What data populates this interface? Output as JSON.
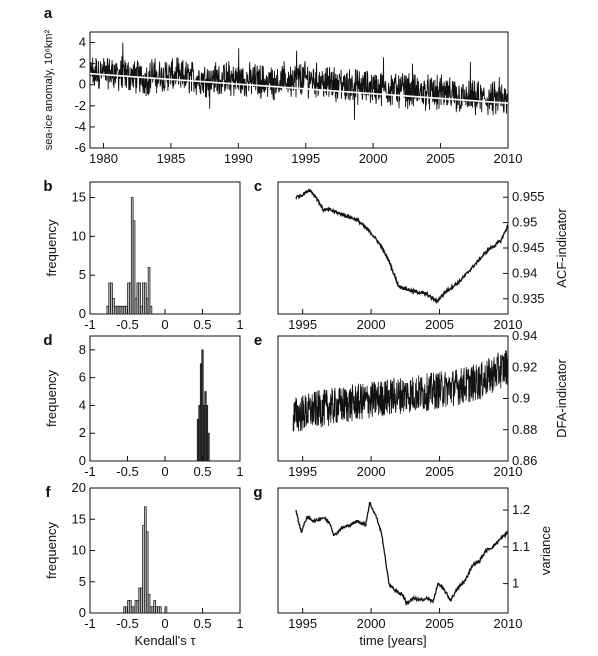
{
  "chart_data": [
    {
      "panel": "a",
      "type": "line",
      "title": "",
      "xlabel": "",
      "ylabel": "sea-ice anomaly, 10⁶km²",
      "xlim": [
        1979,
        2010
      ],
      "ylim": [
        -6,
        5
      ],
      "x_ticks": [
        "1980",
        "1985",
        "1990",
        "1995",
        "2000",
        "2005",
        "2010"
      ],
      "y_ticks": [
        "-6",
        "-4",
        "-2",
        "0",
        "2",
        "4"
      ],
      "series": [
        {
          "kind": "daily anomaly (noisy)",
          "x": [
            1979.0,
            1981.0,
            1983.0,
            1985.0,
            1987.0,
            1989.0,
            1991.0,
            1993.0,
            1995.0,
            1997.0,
            1999.0,
            2001.0,
            2003.0,
            2005.0,
            2007.0,
            2009.0,
            2010.0
          ],
          "y": [
            1.2,
            1.1,
            0.6,
            0.9,
            0.6,
            0.5,
            0.4,
            0.3,
            0.6,
            0.1,
            -0.2,
            -0.3,
            -0.6,
            -0.9,
            -1.3,
            -1.4,
            -1.7
          ]
        },
        {
          "kind": "linear trend",
          "x": [
            1979,
            2010
          ],
          "y": [
            1.05,
            -1.75
          ]
        }
      ]
    },
    {
      "panel": "b",
      "type": "bar",
      "xlabel": "",
      "ylabel": "frequency",
      "xlim": [
        -1,
        1
      ],
      "ylim": [
        0,
        17
      ],
      "x_ticks": [
        "-1",
        "-0.5",
        "0",
        "0.5",
        "1"
      ],
      "y_ticks": [
        "0",
        "5",
        "10",
        "15"
      ],
      "bin_width": 0.025,
      "bins": [
        -0.775,
        -0.75,
        -0.725,
        -0.7,
        -0.675,
        -0.65,
        -0.625,
        -0.6,
        -0.575,
        -0.55,
        -0.525,
        -0.5,
        -0.475,
        -0.45,
        -0.425,
        -0.4,
        -0.375,
        -0.35,
        -0.325,
        -0.3,
        -0.275,
        -0.25,
        -0.225,
        -0.2
      ],
      "values": [
        1,
        4,
        4,
        2,
        1,
        1,
        1,
        1,
        1,
        1,
        1,
        4,
        4,
        15,
        12,
        2,
        4,
        4,
        1,
        4,
        4,
        2,
        6,
        1
      ]
    },
    {
      "panel": "c",
      "type": "line",
      "xlabel": "",
      "ylabel": "ACF-indicator",
      "xlim": [
        1993.2,
        2010
      ],
      "ylim": [
        0.932,
        0.958
      ],
      "x_ticks": [
        "1995",
        "2000",
        "2005",
        "2010"
      ],
      "y_ticks": [
        "0.935",
        "0.94",
        "0.945",
        "0.95",
        "0.955"
      ],
      "x": [
        1994.5,
        1995.0,
        1995.5,
        1996.0,
        1996.5,
        1997.0,
        1998.0,
        1999.0,
        2000.0,
        2000.7,
        2001.3,
        2002.0,
        2003.0,
        2004.0,
        2004.8,
        2005.5,
        2006.5,
        2007.5,
        2008.5,
        2009.5,
        2010.0
      ],
      "y": [
        0.955,
        0.9555,
        0.9565,
        0.955,
        0.9525,
        0.9525,
        0.9515,
        0.9505,
        0.948,
        0.9455,
        0.9425,
        0.9375,
        0.9365,
        0.936,
        0.9345,
        0.9365,
        0.9385,
        0.9415,
        0.9445,
        0.9465,
        0.9495
      ]
    },
    {
      "panel": "d",
      "type": "bar",
      "xlabel": "",
      "ylabel": "frequency",
      "xlim": [
        -1,
        1
      ],
      "ylim": [
        0,
        9
      ],
      "x_ticks": [
        "-1",
        "-0.5",
        "0",
        "0.5",
        "1"
      ],
      "y_ticks": [
        "0",
        "2",
        "4",
        "6",
        "8"
      ],
      "bin_width": 0.02,
      "bins": [
        0.43,
        0.45,
        0.47,
        0.49,
        0.51,
        0.53,
        0.55,
        0.57
      ],
      "values": [
        3,
        4,
        7,
        8,
        4,
        5,
        4,
        2
      ]
    },
    {
      "panel": "e",
      "type": "line",
      "xlabel": "",
      "ylabel": "DFA-indicator",
      "xlim": [
        1993.2,
        2010
      ],
      "ylim": [
        0.86,
        0.94
      ],
      "x_ticks": [
        "1995",
        "2000",
        "2005",
        "2010"
      ],
      "y_ticks": [
        "0.86",
        "0.88",
        "0.9",
        "0.92",
        "0.94"
      ],
      "x": [
        1994.3,
        1996.0,
        1998.0,
        2000.0,
        2002.0,
        2004.0,
        2006.0,
        2008.0,
        2010.0
      ],
      "y": [
        0.889,
        0.893,
        0.896,
        0.899,
        0.902,
        0.904,
        0.907,
        0.911,
        0.921
      ],
      "noise_amplitude": 0.012
    },
    {
      "panel": "f",
      "type": "bar",
      "xlabel": "Kendall's τ",
      "ylabel": "frequency",
      "xlim": [
        -1,
        1
      ],
      "ylim": [
        0,
        20
      ],
      "x_ticks": [
        "-1",
        "-0.5",
        "0",
        "0.5",
        "1"
      ],
      "y_ticks": [
        "0",
        "5",
        "10",
        "15",
        "20"
      ],
      "bin_width": 0.025,
      "bins": [
        -0.55,
        -0.525,
        -0.5,
        -0.475,
        -0.45,
        -0.425,
        -0.4,
        -0.375,
        -0.35,
        -0.325,
        -0.3,
        -0.275,
        -0.25,
        -0.225,
        -0.2,
        -0.175,
        -0.15,
        -0.125,
        -0.1,
        -0.075,
        0.0
      ],
      "values": [
        1,
        1,
        2,
        2,
        1,
        1,
        2,
        2,
        4,
        4,
        14,
        17,
        13,
        3,
        1,
        1,
        2,
        1,
        1,
        1,
        1
      ]
    },
    {
      "panel": "g",
      "type": "line",
      "xlabel": "time [years]",
      "ylabel": "variance",
      "xlim": [
        1993.2,
        2010
      ],
      "ylim": [
        0.92,
        1.26
      ],
      "x_ticks": [
        "1995",
        "2000",
        "2005",
        "2010"
      ],
      "y_ticks": [
        "1",
        "1.1",
        "1.2"
      ],
      "x": [
        1994.5,
        1994.9,
        1995.3,
        1995.9,
        1996.5,
        1997.0,
        1997.3,
        1997.8,
        1998.5,
        1999.0,
        1999.6,
        1999.9,
        2000.4,
        2000.8,
        2001.3,
        2001.8,
        2002.3,
        2002.6,
        2003.1,
        2003.6,
        2004.1,
        2004.5,
        2004.9,
        2005.3,
        2005.8,
        2006.4,
        2006.9,
        2007.4,
        2007.9,
        2008.4,
        2008.9,
        2009.4,
        2010.0
      ],
      "y": [
        1.2,
        1.14,
        1.18,
        1.17,
        1.18,
        1.165,
        1.13,
        1.15,
        1.16,
        1.17,
        1.16,
        1.22,
        1.18,
        1.13,
        1.0,
        0.98,
        0.97,
        0.945,
        0.96,
        0.955,
        0.96,
        0.95,
        1.0,
        0.985,
        0.955,
        0.99,
        1.01,
        1.05,
        1.06,
        1.09,
        1.1,
        1.12,
        1.14
      ]
    }
  ]
}
